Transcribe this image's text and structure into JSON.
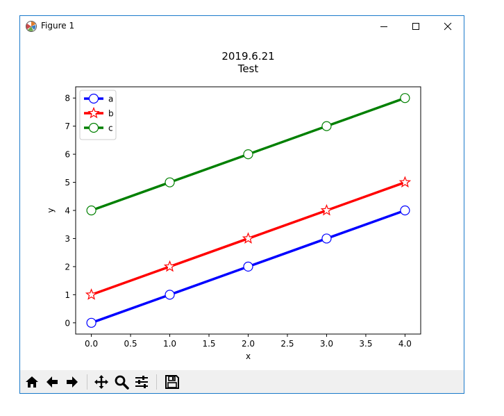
{
  "window": {
    "title": "Figure 1",
    "icons": {
      "app": "matplotlib-icon",
      "minimize": "minimize-icon",
      "maximize": "maximize-icon",
      "close": "close-icon"
    }
  },
  "toolbar": {
    "buttons": [
      {
        "icon": "home-icon"
      },
      {
        "icon": "back-arrow-icon"
      },
      {
        "icon": "forward-arrow-icon"
      },
      {
        "icon": "pan-icon"
      },
      {
        "icon": "zoom-icon"
      },
      {
        "icon": "subplots-configure-icon"
      },
      {
        "icon": "save-icon"
      }
    ]
  },
  "chart_data": {
    "type": "line",
    "title": "2019.6.21\nTest",
    "title_lines": [
      "2019.6.21",
      "Test"
    ],
    "xlabel": "x",
    "ylabel": "y",
    "xlim": [
      -0.2,
      4.2
    ],
    "ylim": [
      -0.4,
      8.4
    ],
    "x_ticks": [
      "0.0",
      "0.5",
      "1.0",
      "1.5",
      "2.0",
      "2.5",
      "3.0",
      "3.5",
      "4.0"
    ],
    "x_tick_values": [
      0,
      0.5,
      1,
      1.5,
      2,
      2.5,
      3,
      3.5,
      4
    ],
    "y_ticks": [
      "0",
      "1",
      "2",
      "3",
      "4",
      "5",
      "6",
      "7",
      "8"
    ],
    "y_tick_values": [
      0,
      1,
      2,
      3,
      4,
      5,
      6,
      7,
      8
    ],
    "grid": false,
    "legend_position": "upper-left",
    "x": [
      0,
      1,
      2,
      3,
      4
    ],
    "series": [
      {
        "name": "a",
        "values": [
          0,
          1,
          2,
          3,
          4
        ],
        "color": "#0000ff",
        "marker": "circle"
      },
      {
        "name": "b",
        "values": [
          1,
          2,
          3,
          4,
          5
        ],
        "color": "#ff0000",
        "marker": "star"
      },
      {
        "name": "c",
        "values": [
          4,
          5,
          6,
          7,
          8
        ],
        "color": "#008000",
        "marker": "circle"
      }
    ]
  }
}
